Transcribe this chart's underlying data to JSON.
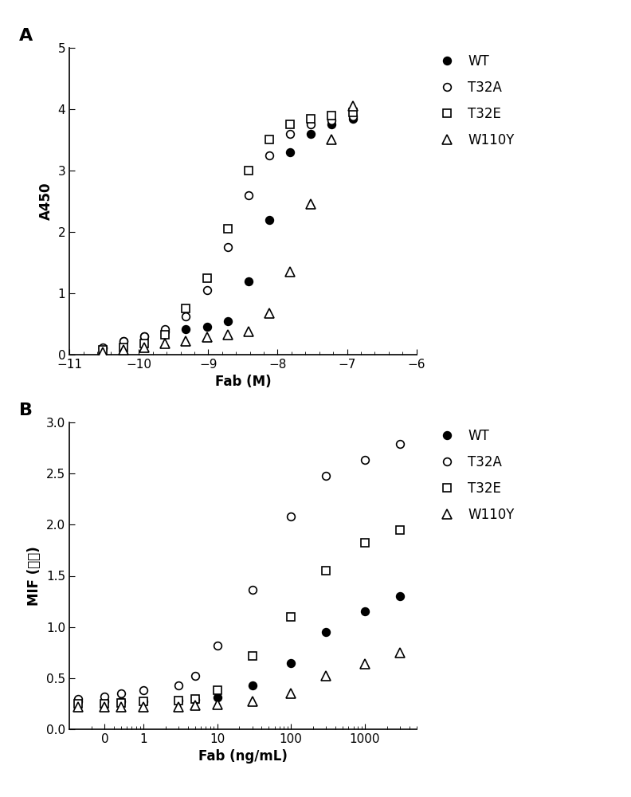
{
  "panel_A": {
    "xlabel": "Fab (M)",
    "ylabel": "A450",
    "xlim": [
      -11,
      -6
    ],
    "ylim": [
      0,
      5
    ],
    "yticks": [
      0,
      1,
      2,
      3,
      4,
      5
    ],
    "xticks": [
      -11,
      -10,
      -9,
      -8,
      -7,
      -6
    ],
    "series": {
      "T32A": {
        "x": [
          -10.52,
          -10.22,
          -9.92,
          -9.62,
          -9.32,
          -9.02,
          -8.72,
          -8.42,
          -8.12,
          -7.82,
          -7.52,
          -7.22,
          -6.92
        ],
        "y": [
          0.12,
          0.22,
          0.3,
          0.42,
          0.62,
          1.05,
          1.75,
          2.6,
          3.25,
          3.6,
          3.75,
          3.82,
          3.88
        ],
        "marker": "o",
        "mfc": "white",
        "mec": "black",
        "ms": 7
      },
      "T32E": {
        "x": [
          -10.52,
          -10.22,
          -9.92,
          -9.62,
          -9.32,
          -9.02,
          -8.72,
          -8.42,
          -8.12,
          -7.82,
          -7.52,
          -7.22,
          -6.92
        ],
        "y": [
          0.08,
          0.12,
          0.18,
          0.32,
          0.75,
          1.25,
          2.05,
          3.0,
          3.5,
          3.75,
          3.85,
          3.9,
          3.95
        ],
        "marker": "s",
        "mfc": "white",
        "mec": "black",
        "ms": 7
      },
      "WT": {
        "x": [
          -10.52,
          -10.22,
          -9.92,
          -9.62,
          -9.32,
          -9.02,
          -8.72,
          -8.42,
          -8.12,
          -7.82,
          -7.52,
          -7.22,
          -6.92
        ],
        "y": [
          0.1,
          0.22,
          0.3,
          0.38,
          0.42,
          0.45,
          0.55,
          1.2,
          2.2,
          3.3,
          3.6,
          3.75,
          3.85
        ],
        "marker": "o",
        "mfc": "black",
        "mec": "black",
        "ms": 7
      },
      "W110Y": {
        "x": [
          -10.52,
          -10.22,
          -9.92,
          -9.62,
          -9.32,
          -9.02,
          -8.72,
          -8.42,
          -8.12,
          -7.82,
          -7.52,
          -7.22,
          -6.92
        ],
        "y": [
          0.04,
          0.08,
          0.12,
          0.18,
          0.22,
          0.28,
          0.32,
          0.38,
          0.68,
          1.35,
          2.45,
          3.5,
          4.05
        ],
        "marker": "^",
        "mfc": "white",
        "mec": "black",
        "ms": 8
      }
    },
    "legend_order": [
      "WT",
      "T32A",
      "T32E",
      "W110Y"
    ]
  },
  "panel_B": {
    "xlabel": "Fab (ng/mL)",
    "ylabel": "MIF (中値)",
    "ylim": [
      0,
      3.0
    ],
    "yticks": [
      0.0,
      0.5,
      1.0,
      1.5,
      2.0,
      2.5,
      3.0
    ],
    "xtick_vals": [
      0.3,
      1,
      10,
      100,
      1000
    ],
    "xtick_labels": [
      "0",
      "1",
      "10",
      "100",
      "1000"
    ],
    "series": {
      "T32A": {
        "x": [
          0.3,
          0.5,
          1.0,
          3.0,
          5.0,
          10.0,
          30.0,
          100.0,
          300.0,
          1000.0,
          3000.0
        ],
        "y": [
          0.32,
          0.35,
          0.38,
          0.43,
          0.52,
          0.82,
          1.36,
          2.08,
          2.48,
          2.63,
          2.79
        ],
        "marker": "o",
        "mfc": "white",
        "mec": "black",
        "ms": 7
      },
      "T32E": {
        "x": [
          0.3,
          0.5,
          1.0,
          3.0,
          5.0,
          10.0,
          30.0,
          100.0,
          300.0,
          1000.0,
          3000.0
        ],
        "y": [
          0.25,
          0.26,
          0.27,
          0.28,
          0.3,
          0.38,
          0.72,
          1.1,
          1.55,
          1.82,
          1.95
        ],
        "marker": "s",
        "mfc": "white",
        "mec": "black",
        "ms": 7
      },
      "WT": {
        "x": [
          0.3,
          0.5,
          1.0,
          3.0,
          5.0,
          10.0,
          30.0,
          100.0,
          300.0,
          1000.0,
          3000.0
        ],
        "y": [
          0.27,
          0.27,
          0.27,
          0.28,
          0.29,
          0.31,
          0.43,
          0.65,
          0.95,
          1.15,
          1.3
        ],
        "marker": "o",
        "mfc": "black",
        "mec": "black",
        "ms": 7
      },
      "W110Y": {
        "x": [
          0.3,
          0.5,
          1.0,
          3.0,
          5.0,
          10.0,
          30.0,
          100.0,
          300.0,
          1000.0,
          3000.0
        ],
        "y": [
          0.22,
          0.22,
          0.22,
          0.22,
          0.23,
          0.24,
          0.27,
          0.35,
          0.52,
          0.64,
          0.75
        ],
        "marker": "^",
        "mfc": "white",
        "mec": "black",
        "ms": 8
      }
    },
    "legend_order": [
      "WT",
      "T32A",
      "T32E",
      "W110Y"
    ],
    "x0_vals": {
      "T32A": 0.3,
      "T32E": 0.25,
      "WT": 0.27,
      "W110Y": 0.22
    }
  }
}
